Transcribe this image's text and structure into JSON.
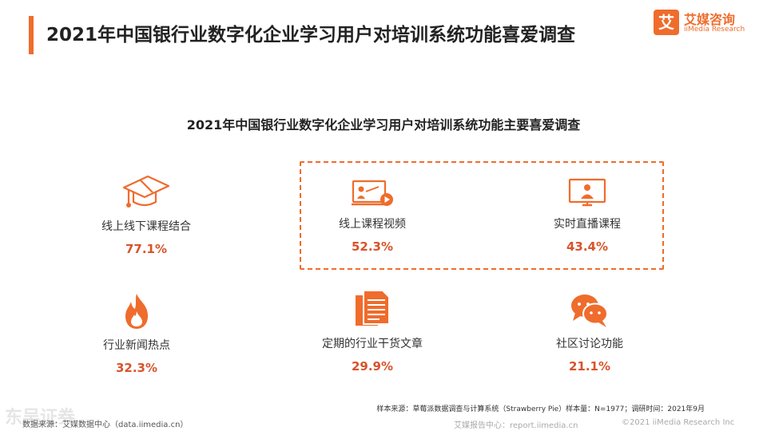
{
  "header": {
    "title": "2021年中国银行业数字化企业学习用户对培训系统功能喜爱调查",
    "accent_color": "#ef6c2c"
  },
  "logo": {
    "mark": "艾",
    "name_cn": "艾媒咨询",
    "name_en": "iiMedia Research"
  },
  "subtitle": "2021年中国银行业数字化企业学习用户对培训系统功能主要喜爱调查",
  "features": [
    {
      "icon": "graduation-cap-icon",
      "label": "线上线下课程结合",
      "value": "77.1%"
    },
    {
      "icon": "video-lesson-icon",
      "label": "线上课程视频",
      "value": "52.3%"
    },
    {
      "icon": "live-stream-icon",
      "label": "实时直播课程",
      "value": "43.4%"
    },
    {
      "icon": "fire-icon",
      "label": "行业新闻热点",
      "value": "32.3%"
    },
    {
      "icon": "documents-icon",
      "label": "定期的行业干货文章",
      "value": "29.9%"
    },
    {
      "icon": "chat-bubbles-icon",
      "label": "社区讨论功能",
      "value": "21.1%"
    }
  ],
  "footer": {
    "sample_note": "样本来源：草莓派数据调查与计算系统（Strawberry Pie）样本量：N=1977；调研时间：2021年9月",
    "source": "数据来源：艾媒数据中心（data.iimedia.cn）",
    "report_center": "艾媒报告中心：report.iimedia.cn",
    "copyright": "©2021  iiMedia Research  Inc",
    "watermark": "东吴证券"
  },
  "colors": {
    "accent": "#ef6c2c",
    "value": "#d9532a"
  }
}
